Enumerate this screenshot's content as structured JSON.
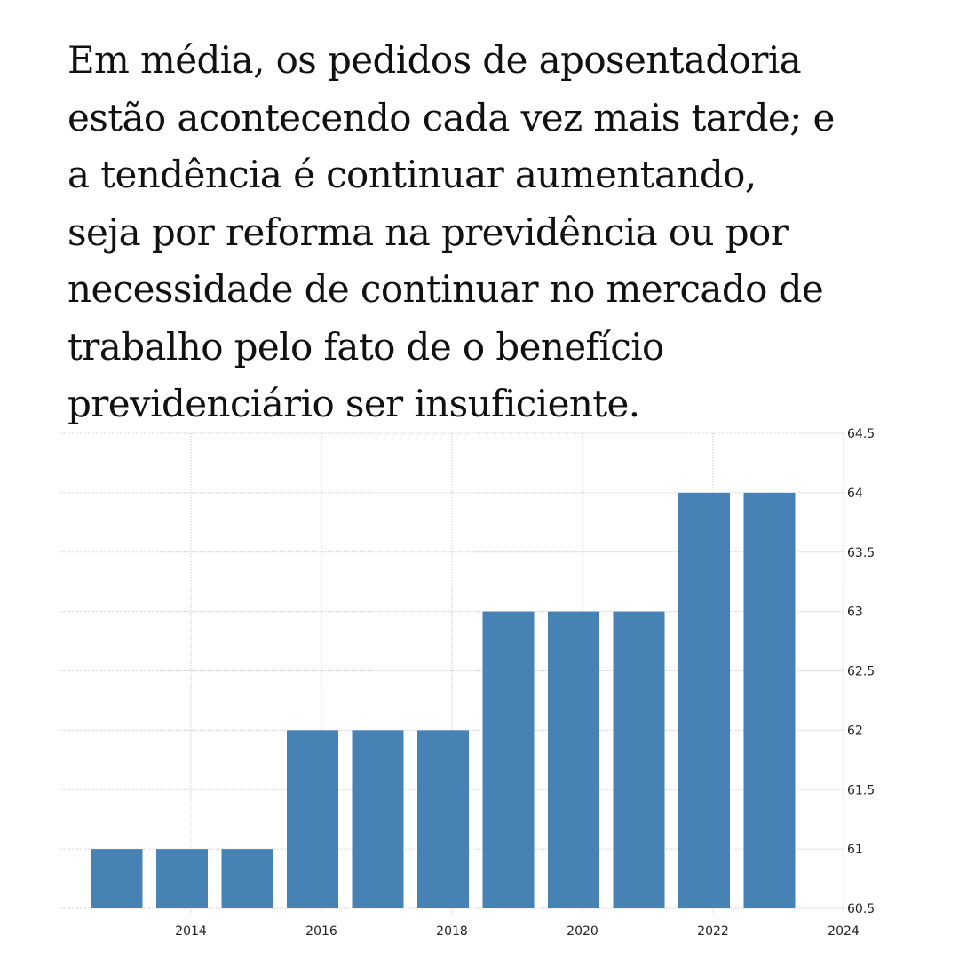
{
  "headline": {
    "lines": [
      "Em média, os pedidos de aposentadoria",
      "estão acontecendo cada vez mais tarde; e",
      "a tendência é continuar aumentando,",
      "seja por reforma na previdência ou por",
      "necessidade de continuar no mercado de",
      "trabalho pelo fato de o benefício",
      "previdenciário ser insuficiente."
    ]
  },
  "colors": {
    "bar": "#4682b4",
    "grid": "#cccccc",
    "text": "#111111",
    "background": "#ffffff"
  },
  "chart_data": {
    "type": "bar",
    "title": "",
    "xlabel": "",
    "ylabel": "",
    "categories": [
      "2013",
      "2014",
      "2015",
      "2016",
      "2017",
      "2018",
      "2019",
      "2020",
      "2021",
      "2022",
      "2023"
    ],
    "values": [
      61,
      61,
      61,
      62,
      62,
      62,
      63,
      63,
      63,
      64,
      64
    ],
    "ylim": [
      60.5,
      64.5
    ],
    "y_ticks": [
      "64.5",
      "64",
      "63.5",
      "63",
      "62.5",
      "62",
      "61.5",
      "61",
      "60.5"
    ],
    "x_ticks": [
      "2014",
      "2016",
      "2018",
      "2020",
      "2022",
      "2024"
    ],
    "y_axis_position": "right",
    "grid": true,
    "grid_style": "dotted",
    "legend": "none"
  }
}
